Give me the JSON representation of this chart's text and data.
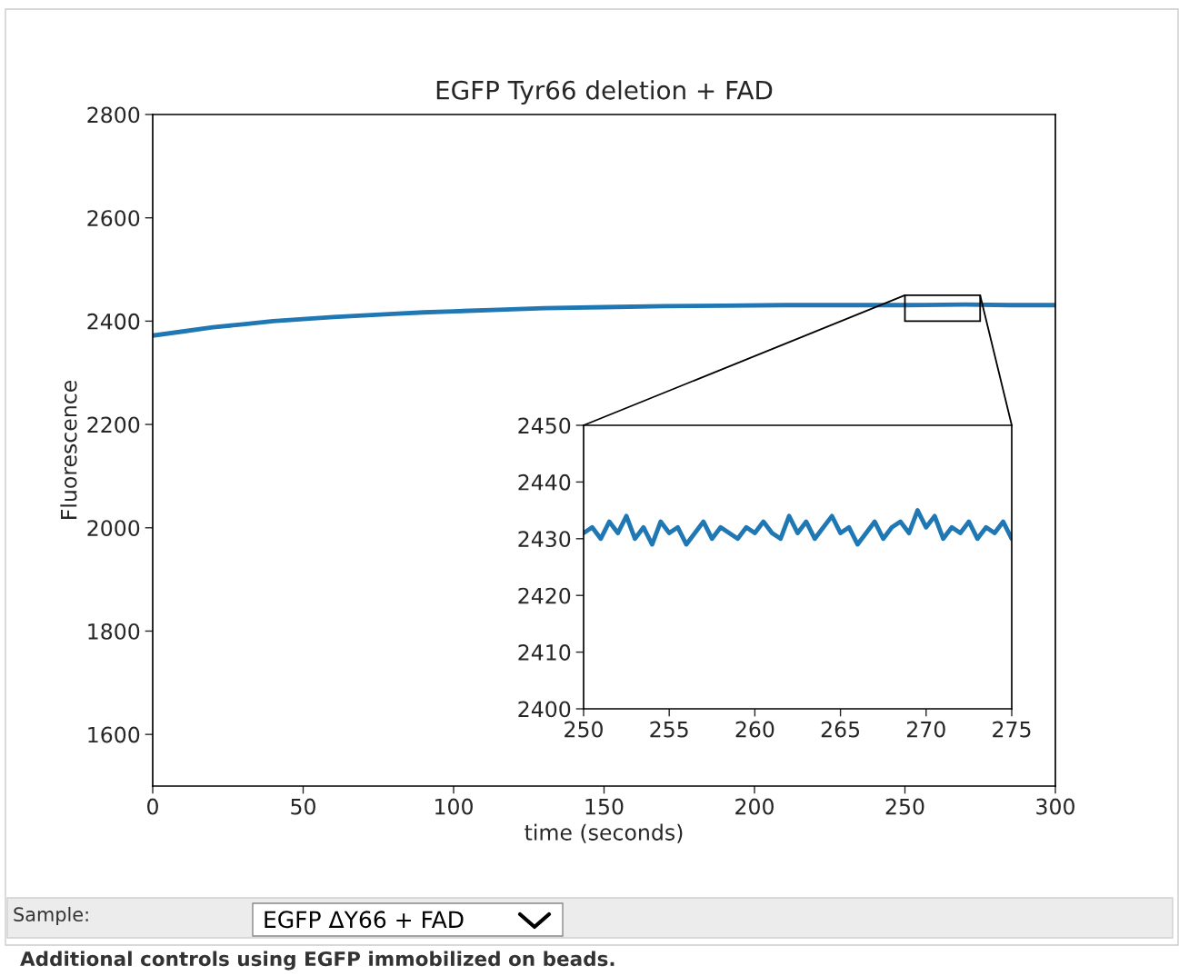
{
  "chart_data": [
    {
      "type": "line",
      "title": "EGFP Tyr66 deletion + FAD",
      "xlabel": "time (seconds)",
      "ylabel": "Fluorescence",
      "x": [
        0,
        10,
        20,
        30,
        40,
        50,
        60,
        70,
        80,
        90,
        100,
        115,
        130,
        150,
        170,
        190,
        210,
        230,
        250,
        270,
        285,
        300
      ],
      "series": [
        {
          "color": "#1f77b4",
          "values": [
            2372,
            2380,
            2388,
            2394,
            2400,
            2404,
            2408,
            2411,
            2414,
            2417,
            2419,
            2422,
            2425,
            2427,
            2429,
            2430,
            2431,
            2431,
            2431,
            2432,
            2431,
            2431
          ]
        }
      ],
      "xlim": [
        0,
        300
      ],
      "ylim": [
        1500,
        2800
      ],
      "xticks": [
        0,
        50,
        100,
        150,
        200,
        250,
        300
      ],
      "yticks": [
        1600,
        1800,
        2000,
        2200,
        2400,
        2600,
        2800
      ],
      "annotations": [
        "Sample:",
        "EGFP ΔY66 + FAD",
        "Additional controls using EGFP immobilized on beads."
      ]
    },
    {
      "type": "line",
      "x": [
        250,
        250.5,
        251,
        251.5,
        252,
        252.5,
        253,
        253.5,
        254,
        254.5,
        255,
        255.5,
        256,
        256.5,
        257,
        257.5,
        258,
        258.5,
        259,
        259.5,
        260,
        260.5,
        261,
        261.5,
        262,
        262.5,
        263,
        263.5,
        264,
        264.5,
        265,
        265.5,
        266,
        266.5,
        267,
        267.5,
        268,
        268.5,
        269,
        269.5,
        270,
        270.5,
        271,
        271.5,
        272,
        272.5,
        273,
        273.5,
        274,
        274.5,
        275
      ],
      "series": [
        {
          "color": "#1f77b4",
          "values": [
            2431,
            2432,
            2430,
            2433,
            2431,
            2434,
            2430,
            2432,
            2429,
            2433,
            2431,
            2432,
            2429,
            2431,
            2433,
            2430,
            2432,
            2431,
            2430,
            2432,
            2431,
            2433,
            2431,
            2430,
            2434,
            2431,
            2433,
            2430,
            2432,
            2434,
            2431,
            2432,
            2429,
            2431,
            2433,
            2430,
            2432,
            2433,
            2431,
            2435,
            2432,
            2434,
            2430,
            2432,
            2431,
            2433,
            2430,
            2432,
            2431,
            2433,
            2430
          ]
        }
      ],
      "xlim": [
        250,
        275
      ],
      "ylim": [
        2400,
        2450
      ],
      "xticks": [
        250,
        255,
        260,
        265,
        270,
        275
      ],
      "yticks": [
        2400,
        2410,
        2420,
        2430,
        2440,
        2450
      ]
    }
  ]
}
